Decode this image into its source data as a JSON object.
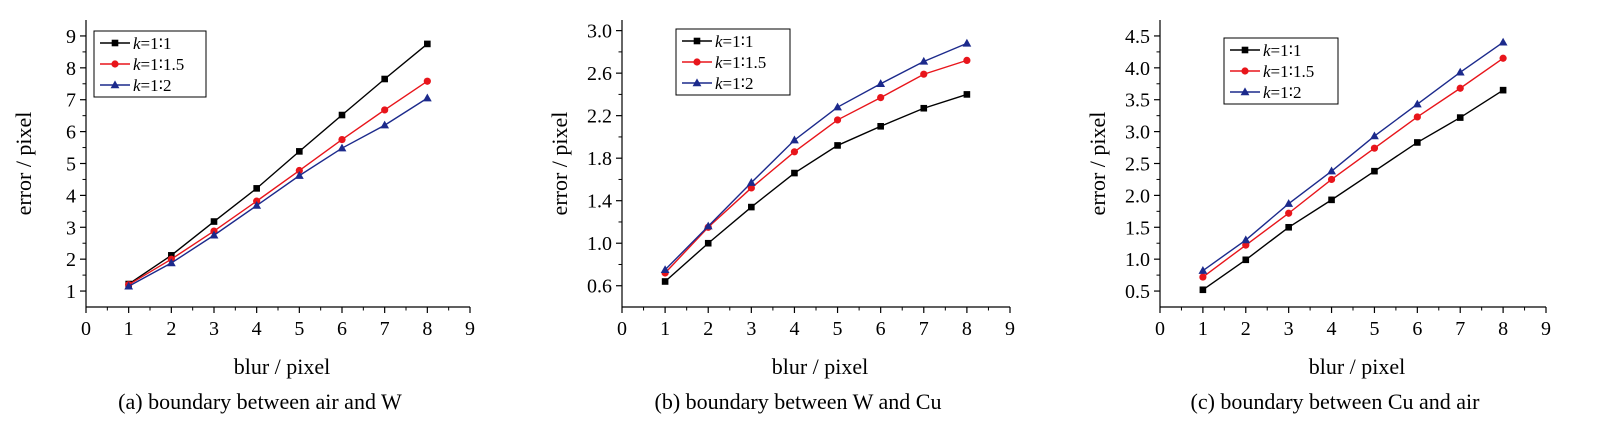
{
  "chart_data": [
    {
      "type": "line",
      "caption": "(a) boundary between air and W",
      "xlabel": "blur / pixel",
      "ylabel": "error / pixel",
      "xlim": [
        0,
        9
      ],
      "ylim": [
        0.5,
        9.5
      ],
      "xticks": [
        0,
        1,
        2,
        3,
        4,
        5,
        6,
        7,
        8,
        9
      ],
      "yticks": [
        1,
        2,
        3,
        4,
        5,
        6,
        7,
        8,
        9
      ],
      "tick_decimals": 0,
      "legend_position": "top-left",
      "x": [
        1,
        2,
        3,
        4,
        5,
        6,
        7,
        8
      ],
      "series": [
        {
          "name": "k=1∶1",
          "color": "#000000",
          "marker": "square",
          "values": [
            1.22,
            2.12,
            3.18,
            4.22,
            5.38,
            6.52,
            7.65,
            8.75
          ]
        },
        {
          "name": "k=1∶1.5",
          "color": "#e8151b",
          "marker": "circle",
          "values": [
            1.2,
            2.0,
            2.88,
            3.82,
            4.78,
            5.75,
            6.68,
            7.58
          ]
        },
        {
          "name": "k=1∶2",
          "color": "#1c2a8c",
          "marker": "triangle",
          "values": [
            1.15,
            1.88,
            2.75,
            3.68,
            4.62,
            5.48,
            6.2,
            7.05
          ]
        }
      ]
    },
    {
      "type": "line",
      "caption": "(b) boundary between W and Cu",
      "xlabel": "blur / pixel",
      "ylabel": "error / pixel",
      "xlim": [
        0,
        9
      ],
      "ylim": [
        0.4,
        3.1
      ],
      "xticks": [
        0,
        1,
        2,
        3,
        4,
        5,
        6,
        7,
        8,
        9
      ],
      "yticks": [
        0.6,
        1.0,
        1.4,
        1.8,
        2.2,
        2.6,
        3.0
      ],
      "tick_decimals": 1,
      "legend_position": "top-left",
      "x": [
        1,
        2,
        3,
        4,
        5,
        6,
        7,
        8
      ],
      "series": [
        {
          "name": "k=1∶1",
          "color": "#000000",
          "marker": "square",
          "values": [
            0.64,
            1.0,
            1.34,
            1.66,
            1.92,
            2.1,
            2.27,
            2.4
          ]
        },
        {
          "name": "k=1∶1.5",
          "color": "#e8151b",
          "marker": "circle",
          "values": [
            0.72,
            1.15,
            1.52,
            1.86,
            2.16,
            2.37,
            2.59,
            2.72
          ]
        },
        {
          "name": "k=1∶2",
          "color": "#1c2a8c",
          "marker": "triangle",
          "values": [
            0.75,
            1.16,
            1.57,
            1.97,
            2.28,
            2.5,
            2.71,
            2.88
          ]
        }
      ]
    },
    {
      "type": "line",
      "caption": "(c) boundary between Cu and air",
      "xlabel": "blur / pixel",
      "ylabel": "error / pixel",
      "xlim": [
        0,
        9
      ],
      "ylim": [
        0.25,
        4.75
      ],
      "xticks": [
        0,
        1,
        2,
        3,
        4,
        5,
        6,
        7,
        8,
        9
      ],
      "yticks": [
        0.5,
        1.0,
        1.5,
        2.0,
        2.5,
        3.0,
        3.5,
        4.0,
        4.5
      ],
      "tick_decimals": 1,
      "legend_position": "top-left",
      "x": [
        1,
        2,
        3,
        4,
        5,
        6,
        7,
        8
      ],
      "series": [
        {
          "name": "k=1∶1",
          "color": "#000000",
          "marker": "square",
          "values": [
            0.52,
            0.99,
            1.5,
            1.93,
            2.38,
            2.83,
            3.22,
            3.65
          ]
        },
        {
          "name": "k=1∶1.5",
          "color": "#e8151b",
          "marker": "circle",
          "values": [
            0.72,
            1.22,
            1.72,
            2.25,
            2.74,
            3.23,
            3.68,
            4.15
          ]
        },
        {
          "name": "k=1∶2",
          "color": "#1c2a8c",
          "marker": "triangle",
          "values": [
            0.82,
            1.3,
            1.87,
            2.38,
            2.93,
            3.43,
            3.93,
            4.4
          ]
        }
      ]
    }
  ]
}
